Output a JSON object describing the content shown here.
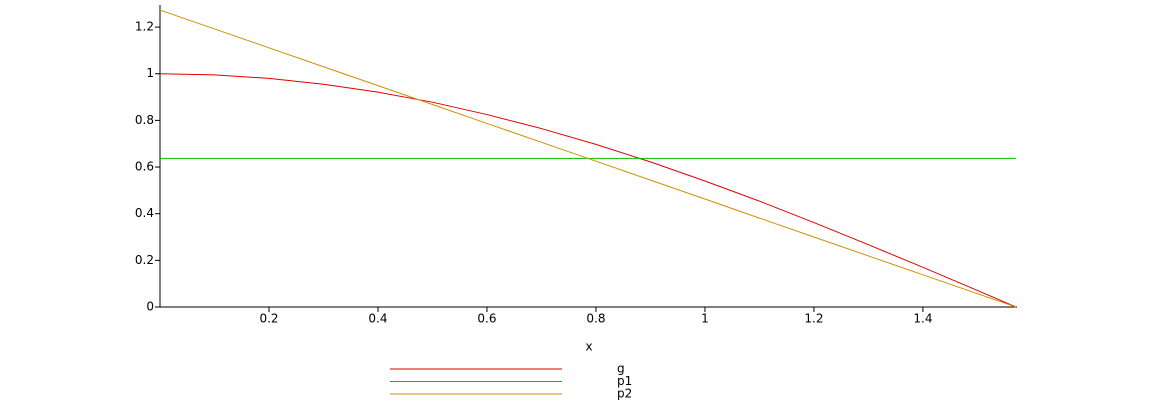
{
  "chart_data": {
    "type": "line",
    "x_label": "x",
    "x": [
      0,
      0.1,
      0.2,
      0.3,
      0.4,
      0.5,
      0.6,
      0.7,
      0.8,
      0.9,
      1.0,
      1.1,
      1.2,
      1.3,
      1.4,
      1.5,
      1.5708
    ],
    "series": [
      {
        "name": "g",
        "color": "#e00000",
        "values": [
          1,
          0.995,
          0.98,
          0.955,
          0.921,
          0.878,
          0.825,
          0.765,
          0.697,
          0.622,
          0.54,
          0.454,
          0.362,
          0.267,
          0.17,
          0.071,
          0
        ]
      },
      {
        "name": "p1",
        "color": "#00c000",
        "values": [
          0.637,
          0.637,
          0.637,
          0.637,
          0.637,
          0.637,
          0.637,
          0.637,
          0.637,
          0.637,
          0.637,
          0.637,
          0.637,
          0.637,
          0.637,
          0.637,
          0.637
        ]
      },
      {
        "name": "p2",
        "color": "#d09000",
        "values": [
          1.273,
          1.192,
          1.111,
          1.03,
          0.949,
          0.868,
          0.787,
          0.706,
          0.625,
          0.544,
          0.463,
          0.381,
          0.3,
          0.219,
          0.138,
          0.057,
          0
        ]
      }
    ],
    "xlim": [
      0,
      1.5708
    ],
    "ylim": [
      0,
      1.2732
    ],
    "xticks": [
      0.2,
      0.4,
      0.6,
      0.8,
      1,
      1.2,
      1.4
    ],
    "yticks": [
      0,
      0.2,
      0.4,
      0.6,
      0.8,
      1,
      1.2
    ],
    "legend": "bottom",
    "grid": false
  }
}
